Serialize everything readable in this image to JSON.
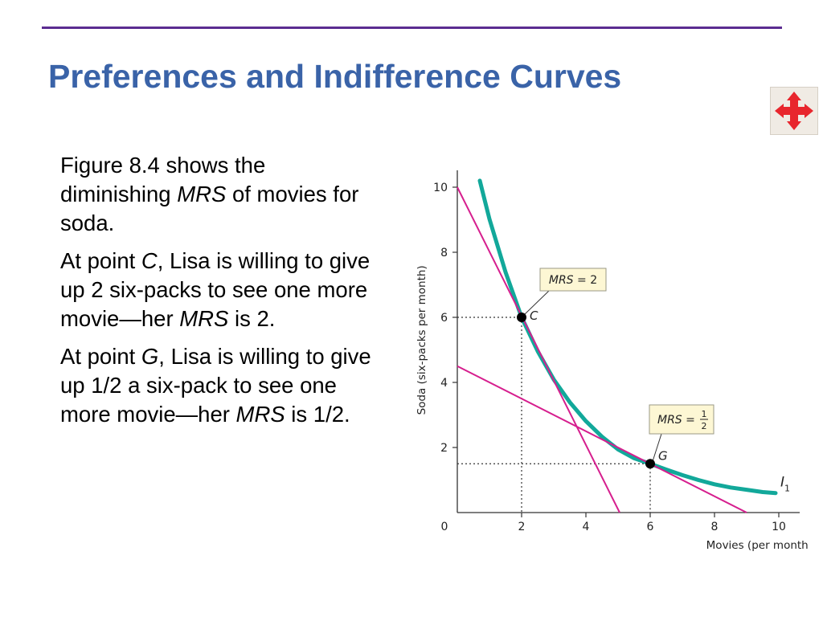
{
  "slide": {
    "title": "Preferences and Indifference Curves",
    "accent_rule_color": "#5b2c91",
    "title_color": "#3a63a8",
    "nav_icon": "move-arrows-icon"
  },
  "text": {
    "p1": {
      "a": "Figure 8.4 shows the diminishing ",
      "em": "MRS",
      "b": " of movies for soda."
    },
    "p2": {
      "a": "At point ",
      "em1": "C",
      "b": ", Lisa is willing to give up 2 six-packs to see one more movie—her ",
      "em2": "MRS",
      "c": " is 2."
    },
    "p3": {
      "a": "At point ",
      "em1": "G",
      "b": ", Lisa is willing to give up 1/2 a six-pack to see one more movie—her ",
      "em2": "MRS",
      "c": " is 1/2."
    }
  },
  "chart_data": {
    "type": "line",
    "xlabel": "Movies (per month)",
    "ylabel": "Soda (six-packs per month)",
    "xlim": [
      0,
      10.5
    ],
    "ylim": [
      0,
      10.5
    ],
    "xticks": [
      "0",
      "2",
      "4",
      "6",
      "8",
      "10"
    ],
    "yticks": [
      "2",
      "4",
      "6",
      "8",
      "10"
    ],
    "grid": false,
    "series": [
      {
        "name": "I1",
        "label_main": "I",
        "label_sub": "1",
        "color": "#12a89a",
        "x": [
          0.7,
          1.0,
          1.5,
          2.0,
          2.5,
          3.0,
          3.5,
          4.0,
          4.5,
          5.0,
          5.5,
          6.0,
          6.5,
          7.0,
          7.5,
          8.0,
          8.5,
          9.0,
          9.5,
          9.9
        ],
        "y": [
          10.2,
          9.02,
          7.39,
          6.0,
          4.96,
          4.09,
          3.39,
          2.81,
          2.33,
          1.94,
          1.67,
          1.5,
          1.32,
          1.15,
          1.0,
          0.87,
          0.77,
          0.7,
          0.63,
          0.6
        ]
      }
    ],
    "tangents": [
      {
        "label": "slope 2 at C",
        "color": "#d61e8e",
        "x": [
          0,
          5.05
        ],
        "y": [
          10.0,
          0
        ]
      },
      {
        "label": "slope 1/2 at G",
        "color": "#d61e8e",
        "x": [
          0,
          9.0
        ],
        "y": [
          4.5,
          0
        ]
      }
    ],
    "points": [
      {
        "label": "C",
        "x": 2,
        "y": 6
      },
      {
        "label": "G",
        "x": 6,
        "y": 1.5
      }
    ],
    "annotations": [
      {
        "point": "C",
        "text": "MRS = 2"
      },
      {
        "point": "G",
        "text_prefix": "MRS = ",
        "num": "1",
        "den": "2"
      }
    ]
  }
}
